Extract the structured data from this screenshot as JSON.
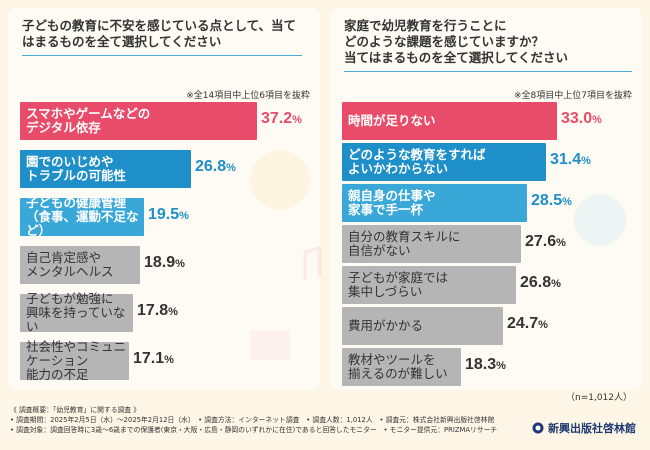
{
  "colors": {
    "pink": "#e84c6a",
    "blue": "#1e8fc8",
    "lightblue": "#3aa7d9",
    "gray": "#b5b5b5",
    "value_pink": "#e84c6a",
    "value_blue": "#1e8fc8",
    "value_gray": "#333333"
  },
  "chart_data": [
    {
      "type": "bar",
      "orientation": "horizontal",
      "title": "子どもの教育に不安を感じている点として、当てはまるものを全て選択してください",
      "note": "※全14項目中上位6項目を抜粋",
      "xlim": [
        0,
        40
      ],
      "unit": "%",
      "categories": [
        "スマホやゲームなどの\nデジタル依存",
        "園でのいじめや\nトラブルの可能性",
        "子どもの健康管理\n（食事、運動不足など）",
        "自己肯定感や\nメンタルヘルス",
        "子どもが勉強に\n興味を持っていない",
        "社会性やコミュニケーション\n能力の不足"
      ],
      "values": [
        37.2,
        26.8,
        19.5,
        18.9,
        17.8,
        17.1
      ],
      "colors": [
        "pink",
        "blue",
        "lightblue",
        "gray",
        "gray",
        "gray"
      ]
    },
    {
      "type": "bar",
      "orientation": "horizontal",
      "title": "家庭で幼児教育を行うことに\nどのような課題を感じていますか？\n当てはまるものを全て選択してください",
      "note": "※全8項目中上位7項目を抜粋",
      "xlim": [
        0,
        40
      ],
      "unit": "%",
      "categories": [
        "時間が足りない",
        "どのような教育をすれば\nよいかわからない",
        "親自身の仕事や\n家事で手一杯",
        "自分の教育スキルに\n自信がない",
        "子どもが家庭では\n集中しづらい",
        "費用がかかる",
        "教材やツールを\n揃えるのが難しい"
      ],
      "values": [
        33.0,
        31.4,
        28.5,
        27.6,
        26.8,
        24.7,
        18.3
      ],
      "colors": [
        "pink",
        "blue",
        "lightblue",
        "gray",
        "gray",
        "gray",
        "gray"
      ]
    }
  ],
  "sample": "（n=1,012人）",
  "footer": [
    "《 調査概要：「幼児教育」に関する調査 》",
    "• 調査期間：2025年2月5日（水）～2025年2月12日（水）　• 調査方法：インターネット調査　• 調査人数：1,012人　• 調査元：株式会社新興出版社啓林館",
    "• 調査対象：調査回答時に3歳～6歳までの保護者(東京・大阪・広島・静岡のいずれかに在住)であると回答したモニター　• モニター提供元：PRIZMAリサーチ"
  ],
  "brand": "新興出版社啓林館"
}
